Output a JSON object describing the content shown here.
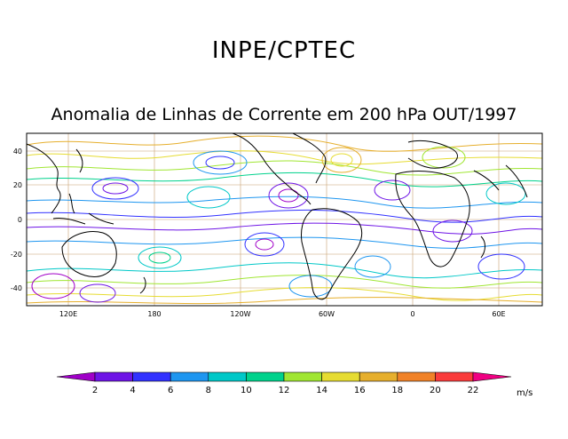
{
  "header": {
    "title": "INPE/CPTEC",
    "subtitle": "Anomalia de Linhas de Corrente em 200 hPa OUT/1997"
  },
  "map": {
    "lon_labels": [
      "120E",
      "180",
      "120W",
      "60W",
      "0",
      "60E"
    ],
    "lat_labels": [
      "40",
      "20",
      "0",
      "-20",
      "-40"
    ]
  },
  "colorbar": {
    "ticks": [
      "2",
      "4",
      "6",
      "8",
      "10",
      "12",
      "14",
      "16",
      "18",
      "20",
      "22"
    ],
    "unit": "m/s",
    "colors": [
      "#a000c8",
      "#6e14e6",
      "#3232ff",
      "#1e96f0",
      "#00c8c8",
      "#00d28c",
      "#a0e632",
      "#e6dc32",
      "#e6af2d",
      "#f08228",
      "#fa3c3c",
      "#f00082"
    ]
  }
}
